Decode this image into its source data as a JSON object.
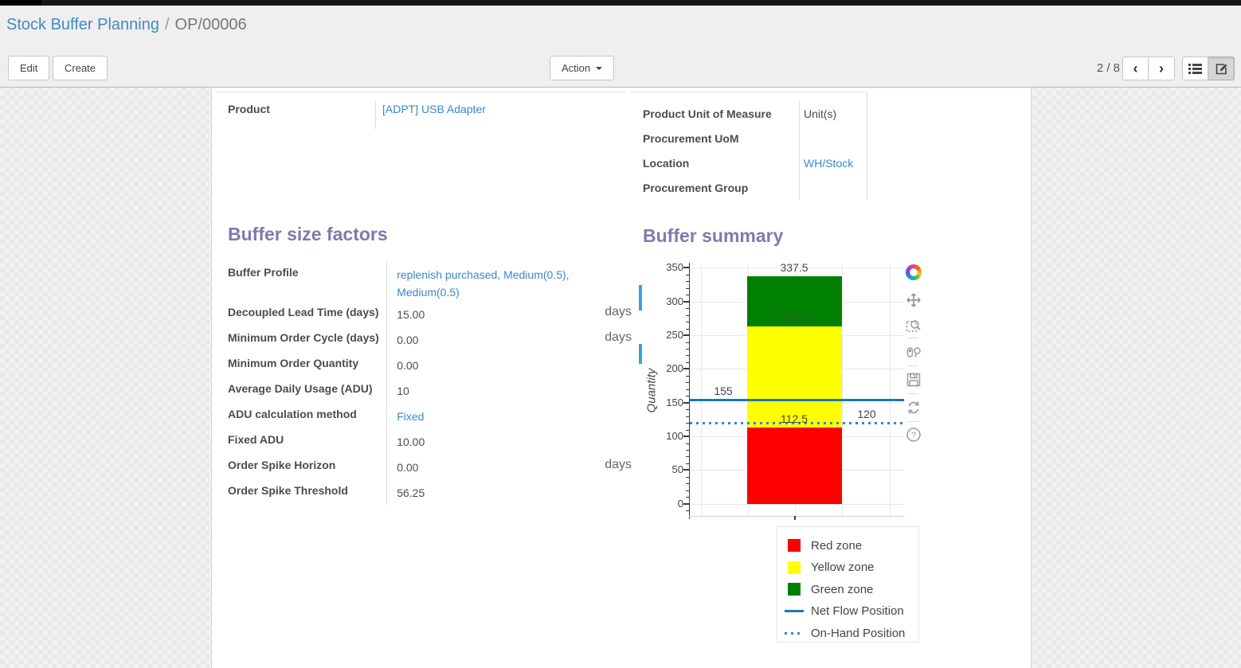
{
  "breadcrumb": {
    "parent": "Stock Buffer Planning",
    "separator": "/",
    "current": "OP/00006"
  },
  "toolbar": {
    "edit_label": "Edit",
    "create_label": "Create",
    "action_label": "Action",
    "pager_text": "2 / 8",
    "prev_glyph": "‹",
    "next_glyph": "›"
  },
  "form": {
    "product_group": [
      {
        "label": "Product",
        "value": "[ADPT] USB Adapter",
        "link": true
      }
    ],
    "uom_group": [
      {
        "label": "Product Unit of Measure",
        "value": "Unit(s)",
        "link": false
      },
      {
        "label": "Procurement UoM",
        "value": "",
        "link": false
      },
      {
        "label": "Location",
        "value": "WH/Stock",
        "link": true
      },
      {
        "label": "Procurement Group",
        "value": "",
        "link": false
      }
    ],
    "factors_title": "Buffer size factors",
    "summary_title": "Buffer summary",
    "factors": [
      {
        "label": "Buffer Profile",
        "value": "replenish purchased, Medium(0.5), Medium(0.5)",
        "link": true,
        "tall": true
      },
      {
        "label": "Decoupled Lead Time (days)",
        "value": "15.00",
        "suffix": "days"
      },
      {
        "label": "Minimum Order Cycle (days)",
        "value": "0.00",
        "suffix": "days"
      },
      {
        "label": "Minimum Order Quantity",
        "value": "0.00"
      },
      {
        "label": "Average Daily Usage (ADU)",
        "value": "10"
      },
      {
        "label": "ADU calculation method",
        "value": "Fixed",
        "link": true
      },
      {
        "label": "Fixed ADU",
        "value": "10.00"
      },
      {
        "label": "Order Spike Horizon",
        "value": "0.00",
        "suffix": "days"
      },
      {
        "label": "Order Spike Threshold",
        "value": "56.25"
      }
    ]
  },
  "chart_data": {
    "type": "bar",
    "title": "Buffer summary",
    "xlabel": "",
    "ylabel": "Quantity",
    "ylim": [
      -18,
      354
    ],
    "yticks": [
      0,
      50,
      100,
      150,
      200,
      250,
      300,
      350
    ],
    "minor_tick_step": 10,
    "grid": true,
    "legend_position": "bottom-right",
    "categories": [
      ""
    ],
    "series": [
      {
        "name": "Red zone",
        "type": "bar",
        "color": "#ff0000",
        "base": 0,
        "values": [
          112.5
        ]
      },
      {
        "name": "Yellow zone",
        "type": "bar",
        "color": "#ffff00",
        "base": 112.5,
        "values": [
          150
        ]
      },
      {
        "name": "Green zone",
        "type": "bar",
        "color": "#008000",
        "base": 262.5,
        "values": [
          75
        ]
      },
      {
        "name": "Net Flow Position",
        "type": "line",
        "color": "#1f77b4",
        "style": "solid",
        "values": [
          155
        ]
      },
      {
        "name": "On-Hand Position",
        "type": "line",
        "color": "#2f87d4",
        "style": "dotted",
        "values": [
          120
        ]
      }
    ],
    "annotations": [
      {
        "text": "337.5",
        "y": 337.5,
        "x": "bar-center",
        "color": "#444444"
      },
      {
        "text": "262.5",
        "y": 262.5,
        "x": "bar-center",
        "color": "#3f523f"
      },
      {
        "text": "112.5",
        "y": 112.5,
        "x": "bar-center",
        "color": "#444444"
      },
      {
        "text": "155",
        "y": 155,
        "x": "left",
        "color": "#444444"
      },
      {
        "text": "120",
        "y": 120,
        "x": "right",
        "color": "#444444"
      }
    ]
  },
  "chart_toolbar": {
    "icons": [
      "plotly-logo",
      "pan",
      "box-zoom",
      "compare-hover",
      "save",
      "reset",
      "help"
    ]
  }
}
